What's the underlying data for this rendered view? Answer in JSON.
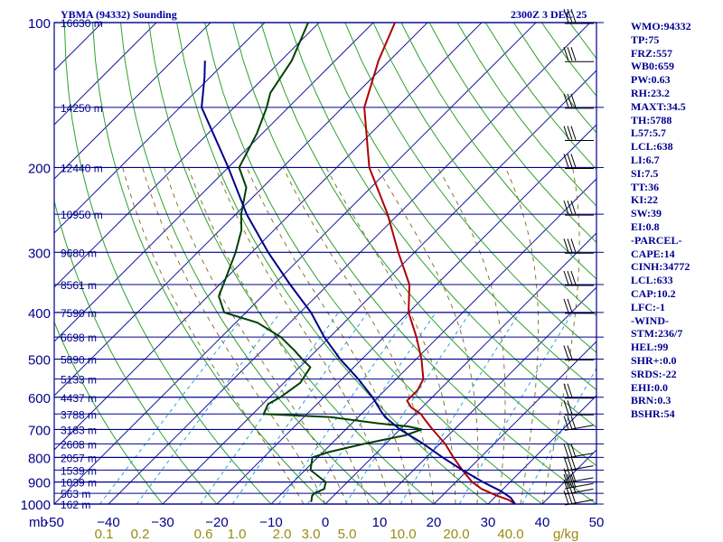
{
  "header": {
    "station": "YBMA (94332) Sounding",
    "time": "2300Z  3 DEC 25"
  },
  "axis": {
    "corner_unit": "mb",
    "mix_unit": "g/kg"
  },
  "indices": [
    "WMO:94332",
    "TP:75",
    "FRZ:557",
    "WB0:659",
    "PW:0.63",
    "RH:23.2",
    "MAXT:34.5",
    "TH:5788",
    "L57:5.7",
    "LCL:638",
    "LI:6.7",
    "SI:7.5",
    "TT:36",
    "KI:22",
    "SW:39",
    "EI:0.8",
    "-PARCEL-",
    "CAPE:14",
    "CINH:34772",
    "LCL:633",
    "CAP:10.2",
    "LFC:-1",
    "-WIND-",
    "STM:236/7",
    "HEL:99",
    "SHR+:0.0",
    "SRDS:-22",
    "EHI:0.0",
    "BRN:0.3",
    "BSHR:54"
  ],
  "chart_data": {
    "type": "line",
    "title": "YBMA (94332) Sounding",
    "subtitle": "2300Z  3 DEC 25",
    "xlabel": "",
    "ylabel": "mb",
    "x_ticks": [
      -50,
      -40,
      -30,
      -20,
      -10,
      0,
      10,
      20,
      30,
      40,
      50
    ],
    "x_tick_labels": [
      "-50",
      "−40",
      "−30",
      "−20",
      "−10",
      "0",
      "10",
      "20",
      "30",
      "40",
      "50"
    ],
    "xlim": [
      -50,
      50
    ],
    "ylim": [
      1000,
      100
    ],
    "y_scale": "log",
    "pressure_levels": [
      1000,
      900,
      800,
      700,
      600,
      500,
      400,
      300,
      200,
      100
    ],
    "pressure_labels": [
      "1000",
      "900",
      "800",
      "700",
      "600",
      "500",
      "400",
      "300",
      "200",
      "100"
    ],
    "height_labels": [
      {
        "p": 1000,
        "label": "162 m"
      },
      {
        "p": 950,
        "label": "563 m"
      },
      {
        "p": 900,
        "label": "1039 m"
      },
      {
        "p": 850,
        "label": "1539 m"
      },
      {
        "p": 800,
        "label": "2057 m"
      },
      {
        "p": 750,
        "label": "2608 m"
      },
      {
        "p": 700,
        "label": "3183 m"
      },
      {
        "p": 650,
        "label": "3788 m"
      },
      {
        "p": 600,
        "label": "4437 m"
      },
      {
        "p": 550,
        "label": "5133 m"
      },
      {
        "p": 500,
        "label": "5890 m"
      },
      {
        "p": 450,
        "label": "6698 m"
      },
      {
        "p": 400,
        "label": "7590 m"
      },
      {
        "p": 350,
        "label": "8561 m"
      },
      {
        "p": 300,
        "label": "9680 m"
      },
      {
        "p": 250,
        "label": "10950 m"
      },
      {
        "p": 200,
        "label": "12440 m"
      },
      {
        "p": 150,
        "label": "14250 m"
      },
      {
        "p": 100,
        "label": "16630 m"
      }
    ],
    "mixing_ratio_labels": [
      "0.1",
      "0.2",
      "0.6",
      "1.0",
      "2.0",
      "3.0",
      "5.0",
      "10.0",
      "20.0",
      "40.0"
    ],
    "series": [
      {
        "name": "",
        "color": "#b00000",
        "points": [
          [
            1000,
            35
          ],
          [
            980,
            33
          ],
          [
            960,
            30
          ],
          [
            930,
            26
          ],
          [
            900,
            23
          ],
          [
            850,
            19
          ],
          [
            800,
            15
          ],
          [
            750,
            11
          ],
          [
            700,
            6
          ],
          [
            670,
            3
          ],
          [
            650,
            1
          ],
          [
            630,
            -2
          ],
          [
            610,
            -4
          ],
          [
            580,
            -4
          ],
          [
            550,
            -5
          ],
          [
            500,
            -9
          ],
          [
            450,
            -14
          ],
          [
            400,
            -20
          ],
          [
            350,
            -25
          ],
          [
            300,
            -33
          ],
          [
            250,
            -42
          ],
          [
            200,
            -54
          ],
          [
            150,
            -66
          ],
          [
            120,
            -72
          ],
          [
            100,
            -76
          ]
        ]
      },
      {
        "name": "",
        "color": "#004000",
        "points": [
          [
            990,
            -3
          ],
          [
            960,
            -4
          ],
          [
            950,
            -4
          ],
          [
            930,
            -3
          ],
          [
            900,
            -4
          ],
          [
            850,
            -9
          ],
          [
            800,
            -11
          ],
          [
            780,
            -9
          ],
          [
            750,
            -4
          ],
          [
            720,
            2
          ],
          [
            700,
            4
          ],
          [
            690,
            1
          ],
          [
            680,
            -5
          ],
          [
            660,
            -15
          ],
          [
            650,
            -28
          ],
          [
            620,
            -29
          ],
          [
            600,
            -28
          ],
          [
            560,
            -27
          ],
          [
            520,
            -28
          ],
          [
            500,
            -31
          ],
          [
            480,
            -34
          ],
          [
            450,
            -39
          ],
          [
            420,
            -46
          ],
          [
            400,
            -54
          ],
          [
            370,
            -58
          ],
          [
            340,
            -60
          ],
          [
            300,
            -63
          ],
          [
            270,
            -66
          ],
          [
            250,
            -69
          ],
          [
            220,
            -73
          ],
          [
            200,
            -78
          ],
          [
            170,
            -81
          ],
          [
            150,
            -84
          ],
          [
            140,
            -86
          ],
          [
            120,
            -88
          ],
          [
            100,
            -92
          ]
        ]
      },
      {
        "name": "",
        "color": "#00008b",
        "points": [
          [
            1000,
            35
          ],
          [
            970,
            33
          ],
          [
            940,
            30
          ],
          [
            900,
            25
          ],
          [
            850,
            19
          ],
          [
            800,
            13
          ],
          [
            750,
            7
          ],
          [
            700,
            0
          ],
          [
            660,
            -5
          ],
          [
            640,
            -7
          ],
          [
            600,
            -11
          ],
          [
            550,
            -17
          ],
          [
            500,
            -24
          ],
          [
            450,
            -31
          ],
          [
            400,
            -38
          ],
          [
            350,
            -47
          ],
          [
            300,
            -57
          ],
          [
            250,
            -68
          ],
          [
            200,
            -80
          ],
          [
            150,
            -96
          ],
          [
            130,
            -101
          ],
          [
            120,
            -104
          ]
        ]
      }
    ]
  }
}
